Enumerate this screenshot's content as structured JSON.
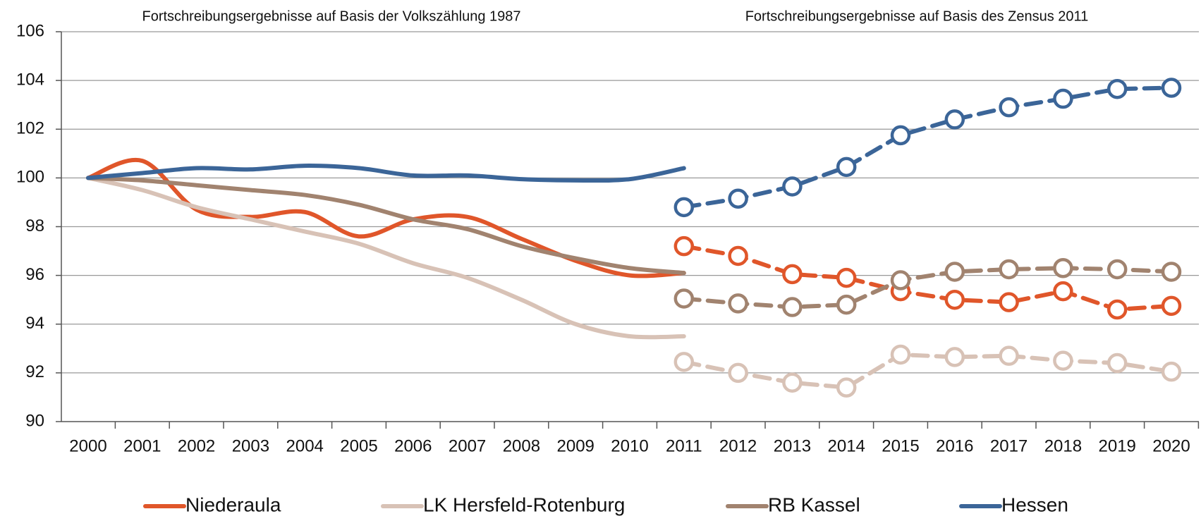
{
  "chart_data": {
    "type": "line",
    "annotations": [
      "Fortschreibungsergebnisse auf Basis der Volkszählung 1987",
      "Fortschreibungsergebnisse auf Basis des Zensus 2011"
    ],
    "categories": [
      "2000",
      "2001",
      "2002",
      "2003",
      "2004",
      "2005",
      "2006",
      "2007",
      "2008",
      "2009",
      "2010",
      "2011",
      "2012",
      "2013",
      "2014",
      "2015",
      "2016",
      "2017",
      "2018",
      "2019",
      "2020"
    ],
    "series": [
      {
        "name": "Niederaula",
        "color": "#e0562a",
        "values": [
          100,
          100.7,
          98.7,
          98.4,
          98.6,
          97.6,
          98.3,
          98.4,
          97.5,
          96.6,
          96.0,
          96.1,
          null,
          null,
          null,
          null,
          null,
          null,
          null,
          null,
          null
        ],
        "values_zensus": [
          null,
          null,
          null,
          null,
          null,
          null,
          null,
          null,
          null,
          null,
          null,
          97.2,
          96.8,
          96.05,
          95.9,
          95.35,
          95.0,
          94.9,
          95.35,
          94.6,
          94.75
        ]
      },
      {
        "name": "LK Hersfeld-Rotenburg",
        "color": "#d8c2b6",
        "values": [
          100,
          99.5,
          98.8,
          98.3,
          97.8,
          97.3,
          96.5,
          95.9,
          95.0,
          94.0,
          93.5,
          93.5,
          null,
          null,
          null,
          null,
          null,
          null,
          null,
          null,
          null
        ],
        "values_zensus": [
          null,
          null,
          null,
          null,
          null,
          null,
          null,
          null,
          null,
          null,
          null,
          92.45,
          92.0,
          91.6,
          91.4,
          92.75,
          92.65,
          92.7,
          92.5,
          92.4,
          92.05
        ]
      },
      {
        "name": "RB Kassel",
        "color": "#a1836f",
        "values": [
          100,
          99.9,
          99.7,
          99.5,
          99.3,
          98.9,
          98.3,
          97.9,
          97.2,
          96.7,
          96.3,
          96.1,
          null,
          null,
          null,
          null,
          null,
          null,
          null,
          null,
          null
        ],
        "values_zensus": [
          null,
          null,
          null,
          null,
          null,
          null,
          null,
          null,
          null,
          null,
          null,
          95.05,
          94.85,
          94.7,
          94.8,
          95.8,
          96.15,
          96.25,
          96.3,
          96.25,
          96.15
        ]
      },
      {
        "name": "Hessen",
        "color": "#3b6598",
        "values": [
          100,
          100.2,
          100.4,
          100.35,
          100.5,
          100.4,
          100.1,
          100.1,
          99.95,
          99.9,
          99.95,
          100.4,
          null,
          null,
          null,
          null,
          null,
          null,
          null,
          null,
          null
        ],
        "values_zensus": [
          null,
          null,
          null,
          null,
          null,
          null,
          null,
          null,
          null,
          null,
          null,
          98.8,
          99.15,
          99.65,
          100.45,
          101.75,
          102.4,
          102.9,
          103.25,
          103.65,
          103.7
        ]
      }
    ],
    "ylim": [
      90,
      106
    ],
    "yticks": [
      90,
      92,
      94,
      96,
      98,
      100,
      102,
      104,
      106
    ],
    "grid": true
  }
}
